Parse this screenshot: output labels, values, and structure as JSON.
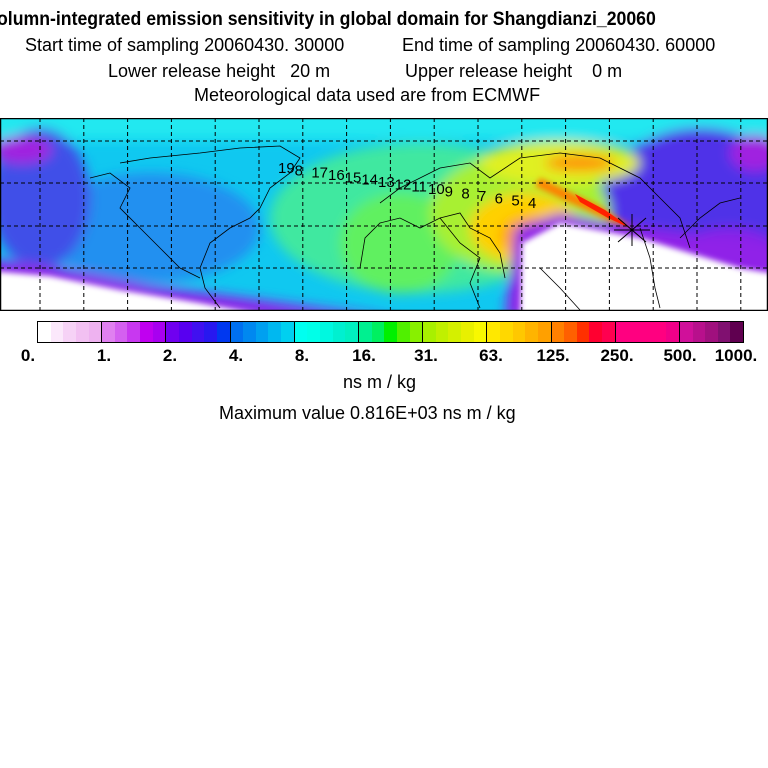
{
  "header": {
    "title": "olumn-integrated emission sensitivity in global domain for Shangdianzi_20060",
    "start_time": "Start time of sampling 20060430. 30000",
    "end_time": "End time of sampling 20060430. 60000",
    "lower_release": "Lower release height   20 m",
    "upper_release": "Upper release height    0 m",
    "met_data": "Meteorological data used are from ECMWF"
  },
  "map": {
    "contour_labels": [
      "19",
      "8",
      "17",
      "16",
      "15",
      "14",
      "13",
      "12",
      "11",
      "10",
      "9",
      "8",
      "7",
      "6",
      "5",
      "4"
    ],
    "receptor_marker": "star-cross-icon"
  },
  "legend": {
    "tick_labels": [
      "0.",
      "1.",
      "2.",
      "4.",
      "8.",
      "16.",
      "31.",
      "63.",
      "125.",
      "250.",
      "500.",
      "1000."
    ],
    "unit": "ns m / kg",
    "max_value": "Maximum value  0.816E+03 ns m / kg",
    "segment_colors": [
      [
        "#ffffff",
        "#fbe8fb",
        "#f6d2f6",
        "#f2c0f2",
        "#eeb2f0"
      ],
      [
        "#e080f0",
        "#d460f0",
        "#c838f0",
        "#c000f0",
        "#a800f0"
      ],
      [
        "#7000f0",
        "#5800f0",
        "#4010f0",
        "#2818f0",
        "#0038f0"
      ],
      [
        "#0070f0",
        "#0088f0",
        "#00a0f0",
        "#00b8f0",
        "#00d0f0"
      ],
      [
        "#00fff0",
        "#00ffe8",
        "#00f8e0",
        "#00f0d0",
        "#00f0c0"
      ],
      [
        "#00f090",
        "#00f060",
        "#00f000",
        "#50f000",
        "#88f000"
      ],
      [
        "#a8f000",
        "#c0f000",
        "#d4f000",
        "#e8f000",
        "#f8f800"
      ],
      [
        "#ffe800",
        "#ffd800",
        "#ffc800",
        "#ffb400",
        "#ffa000"
      ],
      [
        "#ff8000",
        "#ff6000",
        "#ff3000",
        "#ff0030",
        "#ff0050"
      ],
      [
        "#ff0080",
        "#ff0080",
        "#ff0080",
        "#ff0080",
        "#f00088"
      ],
      [
        "#d0109a",
        "#b8108c",
        "#a0107e",
        "#801070",
        "#600050"
      ]
    ]
  }
}
